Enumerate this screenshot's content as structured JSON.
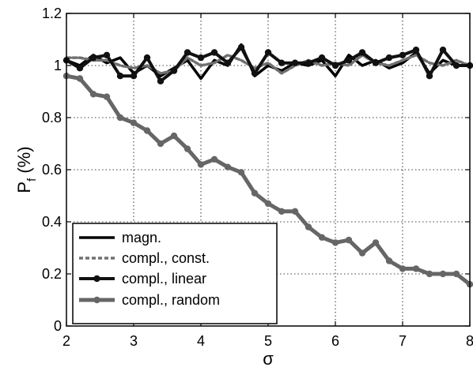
{
  "chart_data": {
    "type": "line",
    "xlabel": "σ",
    "ylabel": {
      "main": "P",
      "sub": "f",
      "suffix": " (%)"
    },
    "xlim": [
      2,
      8
    ],
    "ylim": [
      0,
      1.2
    ],
    "xticks": [
      "2",
      "3",
      "4",
      "5",
      "6",
      "7",
      "8"
    ],
    "yticks": [
      "0",
      "0.2",
      "0.4",
      "0.6",
      "0.8",
      "1",
      "1.2"
    ],
    "grid": true,
    "legend_position": "bottom-left",
    "x": [
      2.0,
      2.2,
      2.4,
      2.6,
      2.8,
      3.0,
      3.2,
      3.4,
      3.6,
      3.8,
      4.0,
      4.2,
      4.4,
      4.6,
      4.8,
      5.0,
      5.2,
      5.4,
      5.6,
      5.8,
      6.0,
      6.2,
      6.4,
      6.6,
      6.8,
      7.0,
      7.2,
      7.4,
      7.6,
      7.8,
      8.0
    ],
    "series": [
      {
        "name": "magn.",
        "color": "#000000",
        "style": "solid",
        "marker": "none",
        "values": [
          1.02,
          1.0,
          1.04,
          1.01,
          1.03,
          0.97,
          1.0,
          0.96,
          0.99,
          1.02,
          0.95,
          1.02,
          1.0,
          1.08,
          0.96,
          1.0,
          0.98,
          1.01,
          1.0,
          1.02,
          0.96,
          1.04,
          1.0,
          1.02,
          0.99,
          1.01,
          1.05,
          0.97,
          1.02,
          1.0,
          1.0
        ]
      },
      {
        "name": "compl., const.",
        "color": "#707070",
        "style": "dashed",
        "marker": "none",
        "values": [
          1.03,
          1.03,
          1.02,
          1.02,
          1.0,
          0.99,
          1.0,
          0.97,
          0.98,
          1.03,
          1.0,
          1.01,
          1.04,
          1.02,
          0.99,
          1.01,
          0.97,
          1.0,
          1.02,
          1.0,
          1.01,
          1.0,
          1.04,
          1.01,
          1.0,
          1.02,
          1.04,
          1.01,
          1.0,
          1.02,
          1.0
        ]
      },
      {
        "name": "compl., linear",
        "color": "#111111",
        "style": "solid",
        "marker": "circle",
        "values": [
          1.02,
          0.99,
          1.03,
          1.04,
          0.96,
          0.96,
          1.03,
          0.94,
          0.98,
          1.05,
          1.03,
          1.05,
          1.01,
          1.07,
          0.97,
          1.05,
          1.01,
          1.01,
          1.01,
          1.03,
          1.0,
          1.02,
          1.05,
          1.01,
          1.03,
          1.04,
          1.06,
          0.96,
          1.06,
          1.0,
          1.0
        ]
      },
      {
        "name": "compl., random",
        "color": "#666666",
        "style": "solid",
        "marker": "circle",
        "values": [
          0.96,
          0.95,
          0.89,
          0.88,
          0.8,
          0.78,
          0.75,
          0.7,
          0.73,
          0.68,
          0.62,
          0.64,
          0.61,
          0.59,
          0.51,
          0.47,
          0.44,
          0.44,
          0.38,
          0.34,
          0.32,
          0.33,
          0.28,
          0.32,
          0.25,
          0.22,
          0.22,
          0.2,
          0.2,
          0.2,
          0.16
        ]
      }
    ]
  }
}
